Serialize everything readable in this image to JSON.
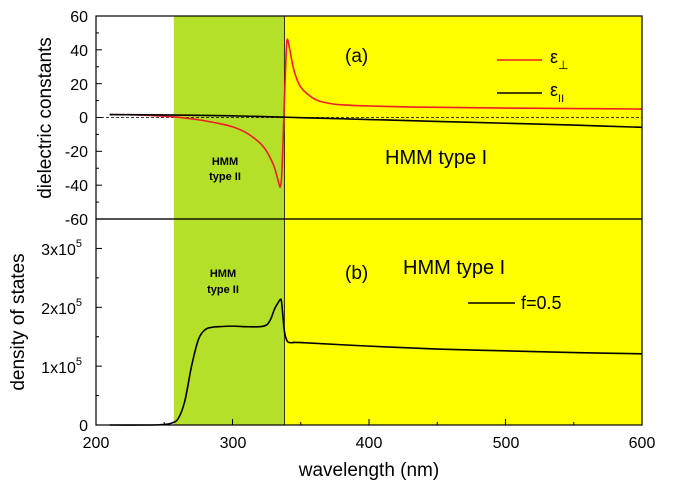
{
  "figure": {
    "xlabel": "wavelength (nm)",
    "xlim": [
      200,
      600
    ],
    "xticks": [
      "200",
      "300",
      "400",
      "500",
      "600"
    ],
    "band_type2": {
      "from": 257,
      "to": 338,
      "color": "#b5e02a"
    },
    "band_type1": {
      "from": 338,
      "to": 600,
      "color": "#ffff00"
    }
  },
  "panel_a": {
    "tag": "(a)",
    "ylabel": "dielectric constants",
    "yticks": [
      "60",
      "40",
      "20",
      "0",
      "-20",
      "-40",
      "-60"
    ],
    "region_label_left_line1": "HMM",
    "region_label_left_line2": "type II",
    "region_label_right": "HMM type I",
    "legend_perp": "ε",
    "legend_perp_sub": "⊥",
    "legend_par": "ε",
    "legend_par_sub": "II",
    "perp_color": "#ee1c25",
    "par_color": "#000000"
  },
  "panel_b": {
    "tag": "(b)",
    "ylabel": "density of states",
    "yticks": [
      "3x10",
      "2x10",
      "1x10",
      "0"
    ],
    "ytick_exp": "5",
    "region_label_left_line1": "HMM",
    "region_label_left_line2": "type II",
    "region_label_right": "HMM type I",
    "legend": "f=0.5",
    "line_color": "#000000"
  },
  "chart_data": [
    {
      "type": "line",
      "xlabel": "wavelength (nm)",
      "ylabel": "dielectric constants",
      "xlim": [
        200,
        600
      ],
      "ylim": [
        -60,
        60
      ],
      "series": [
        {
          "name": "ε⊥",
          "x": [
            210,
            230,
            250,
            260,
            270,
            280,
            290,
            300,
            310,
            320,
            325,
            330,
            332,
            334,
            335,
            336,
            337,
            338,
            339,
            340,
            342,
            345,
            350,
            360,
            370,
            380,
            400,
            425,
            450,
            500,
            550,
            600
          ],
          "y": [
            1.8,
            1.5,
            0.8,
            0.2,
            -0.8,
            -2,
            -3.5,
            -5.5,
            -9,
            -15,
            -20,
            -28,
            -33,
            -39,
            -41,
            -35,
            -15,
            10,
            32,
            46,
            40,
            28,
            18,
            11,
            8.5,
            7.5,
            6.8,
            6.3,
            6,
            5.6,
            5.3,
            5
          ]
        },
        {
          "name": "εII",
          "x": [
            210,
            250,
            300,
            338,
            350,
            400,
            450,
            500,
            550,
            600
          ],
          "y": [
            1.7,
            1.5,
            1,
            0.2,
            -0.1,
            -1.2,
            -2.3,
            -3.4,
            -4.5,
            -5.8
          ]
        }
      ]
    },
    {
      "type": "line",
      "xlabel": "wavelength (nm)",
      "ylabel": "density of states",
      "xlim": [
        200,
        600
      ],
      "ylim": [
        0,
        350000
      ],
      "series": [
        {
          "name": "f=0.5",
          "x": [
            210,
            240,
            250,
            255,
            260,
            265,
            270,
            275,
            280,
            285,
            290,
            300,
            310,
            320,
            325,
            328,
            331,
            334,
            335,
            336,
            338,
            340,
            342,
            345,
            350,
            400,
            450,
            500,
            550,
            600
          ],
          "y": [
            0,
            0,
            1000,
            3000,
            10000,
            40000,
            100000,
            145000,
            162000,
            166000,
            167000,
            168000,
            167000,
            167000,
            170000,
            180000,
            198000,
            210000,
            213000,
            208000,
            160000,
            143000,
            140000,
            140000,
            140000,
            134000,
            129000,
            126000,
            123000,
            121000
          ]
        }
      ]
    }
  ]
}
